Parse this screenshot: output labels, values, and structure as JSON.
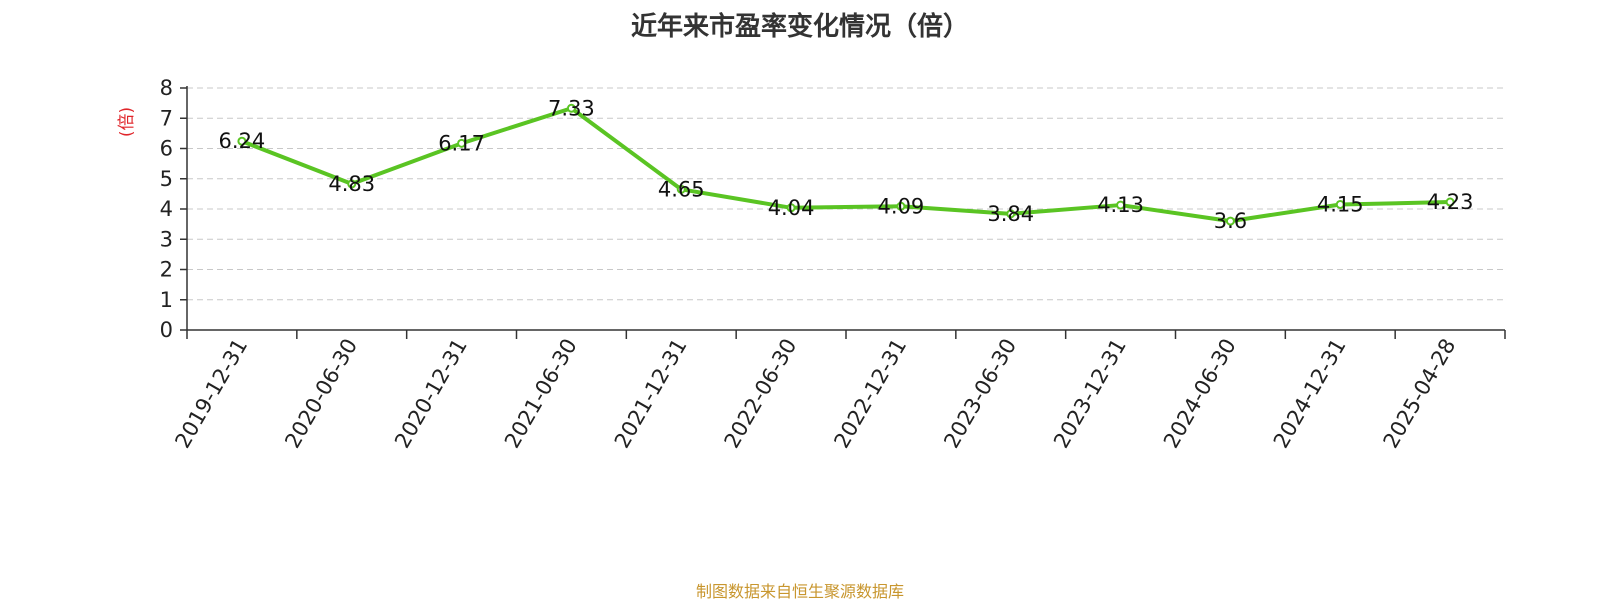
{
  "chart_data": {
    "type": "line",
    "title": "近年来市盈率变化情况（倍）",
    "ylabel": "(倍)",
    "xlabel": "",
    "ylim": [
      0,
      8
    ],
    "yticks": [
      0,
      1,
      2,
      3,
      4,
      5,
      6,
      7,
      8
    ],
    "grid": true,
    "categories": [
      "2019-12-31",
      "2020-06-30",
      "2020-12-31",
      "2021-06-30",
      "2021-12-31",
      "2022-06-30",
      "2022-12-31",
      "2023-06-30",
      "2023-12-31",
      "2024-06-30",
      "2024-12-31",
      "2025-04-28"
    ],
    "series": [
      {
        "values": [
          6.24,
          4.83,
          6.17,
          7.33,
          4.65,
          4.04,
          4.09,
          3.84,
          4.13,
          3.6,
          4.15,
          4.23
        ],
        "color": "#5ac423"
      }
    ],
    "ylabel_color": "#e0262b"
  },
  "footer": {
    "source": "制图数据来自恒生聚源数据库"
  }
}
